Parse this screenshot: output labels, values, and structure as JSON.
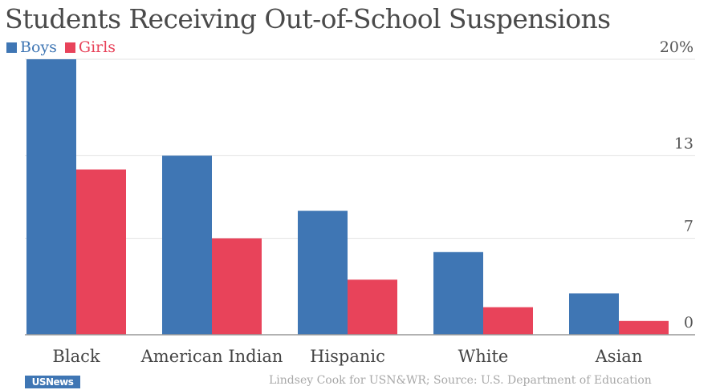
{
  "chart_data": {
    "type": "bar",
    "title": "Students Receiving Out-of-School Suspensions",
    "categories": [
      "Black",
      "American Indian",
      "Hispanic",
      "White",
      "Asian"
    ],
    "series": [
      {
        "name": "Boys",
        "color": "#3f76b4",
        "values": [
          20,
          13,
          9,
          6,
          3
        ]
      },
      {
        "name": "Girls",
        "color": "#e8435a",
        "values": [
          12,
          7,
          4,
          2,
          1
        ]
      }
    ],
    "y_ticks": [
      {
        "value": 0,
        "label": "0"
      },
      {
        "value": 7,
        "label": "7"
      },
      {
        "value": 13,
        "label": "13"
      },
      {
        "value": 20,
        "label": "20%"
      }
    ],
    "ylim": [
      0,
      20
    ],
    "grid": true,
    "legend_position": "top-left"
  },
  "footer": {
    "credit": "Lindsey Cook for USN&WR; Source: U.S. Department of Education",
    "logo_text": "USNews"
  }
}
